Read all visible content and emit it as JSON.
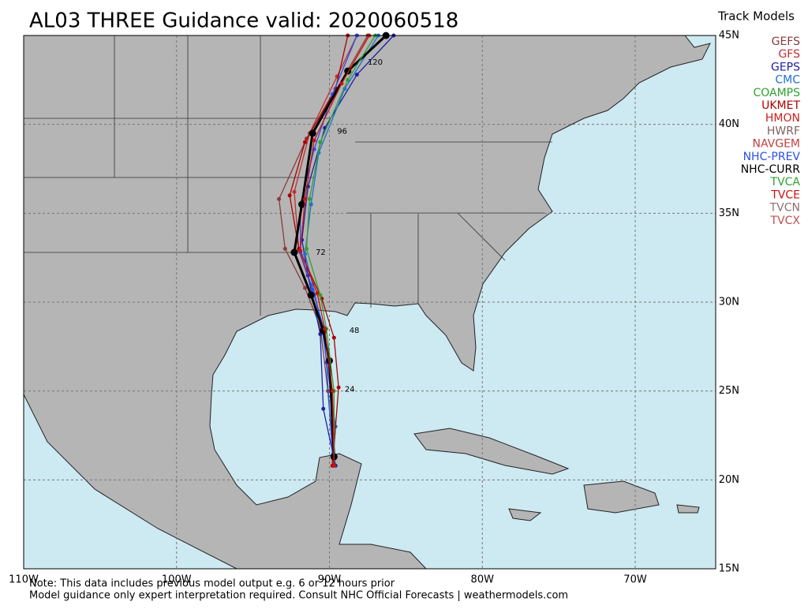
{
  "chart_data": {
    "type": "track-map",
    "title": "AL03 THREE Guidance valid: 2020060518",
    "legend_title": "Track Models",
    "lonticks": [
      {
        "value": -110,
        "label": "110W"
      },
      {
        "value": -100,
        "label": "100W"
      },
      {
        "value": -90,
        "label": "90W"
      },
      {
        "value": -80,
        "label": "80W"
      },
      {
        "value": -70,
        "label": "70W"
      }
    ],
    "latticks": [
      {
        "value": 45,
        "label": "45N"
      },
      {
        "value": 40,
        "label": "40N"
      },
      {
        "value": 35,
        "label": "35N"
      },
      {
        "value": 30,
        "label": "30N"
      },
      {
        "value": 25,
        "label": "25N"
      },
      {
        "value": 20,
        "label": "20N"
      },
      {
        "value": 15,
        "label": "15N"
      }
    ],
    "grid": true,
    "series": [
      {
        "name": "GEFS",
        "color": "#8b3a3a",
        "lon": [
          -89.7,
          -90.1,
          -90.6,
          -91.6,
          -92.9,
          -93.3,
          -91.5,
          -89.5,
          -87.5
        ],
        "lat": [
          20.8,
          25.0,
          28.6,
          30.8,
          33.0,
          35.8,
          39.2,
          42.0,
          45.0
        ]
      },
      {
        "name": "GFS",
        "color": "#c03030",
        "lon": [
          -89.8,
          -89.9,
          -90.3,
          -91.0,
          -92.0,
          -92.3,
          -91.3,
          -89.5,
          -88.2
        ],
        "lat": [
          20.8,
          25.0,
          28.3,
          30.4,
          32.9,
          36.2,
          39.5,
          42.7,
          45.0
        ]
      },
      {
        "name": "GEPS",
        "color": "#2020a0",
        "lon": [
          -89.6,
          -90.4,
          -90.6,
          -91.4,
          -91.8,
          -91.4,
          -90.3,
          -88.2,
          -85.8
        ],
        "lat": [
          20.8,
          24.0,
          28.2,
          31.5,
          33.5,
          36.5,
          39.8,
          42.8,
          45.0
        ]
      },
      {
        "name": "CMC",
        "color": "#2070d0",
        "lon": [
          -89.8,
          -89.6,
          -90.5,
          -91.1,
          -91.6,
          -91.2,
          -90.7,
          -89.0,
          -86.8
        ],
        "lat": [
          20.8,
          23.0,
          28.6,
          31.0,
          32.7,
          35.5,
          38.4,
          42.0,
          45.0
        ]
      },
      {
        "name": "UKMET",
        "color": "#aa0000",
        "lon": [
          -89.8,
          -89.4,
          -89.7,
          -90.5,
          -92.0,
          -92.6,
          -91.6,
          -89.6,
          -88.8
        ],
        "lat": [
          20.8,
          25.2,
          28.0,
          30.2,
          33.0,
          36.0,
          39.0,
          42.0,
          45.0
        ]
      },
      {
        "name": "NHC-PREV",
        "color": "#2a50e8",
        "lon": [
          -89.8,
          -90.2,
          -90.4,
          -91.1,
          -91.9,
          -91.9,
          -91.0,
          -89.8,
          -88.2
        ],
        "lat": [
          21.4,
          26.6,
          28.6,
          30.7,
          32.8,
          35.5,
          38.6,
          41.7,
          45.0
        ]
      },
      {
        "name": "NHC-CURR",
        "color": "#000000",
        "lon": [
          -89.7,
          -90.0,
          -90.4,
          -91.2,
          -92.3,
          -91.8,
          -91.1,
          -88.8,
          -86.3
        ],
        "lat": [
          21.3,
          26.7,
          28.4,
          30.4,
          32.8,
          35.5,
          39.5,
          43.0,
          45.0
        ]
      },
      {
        "name": "TVCA",
        "color": "#30a030",
        "lon": [
          -89.7,
          -89.7,
          -90.2,
          -90.6,
          -91.5,
          -91.3,
          -90.6,
          -88.8,
          -87.0
        ],
        "lat": [
          20.8,
          25.0,
          28.5,
          30.4,
          33.0,
          35.8,
          39.0,
          42.5,
          45.0
        ]
      },
      {
        "name": "TVCE",
        "color": "#cc1010",
        "lon": [
          -89.7,
          -89.8,
          -90.3,
          -90.8,
          -91.9,
          -91.6,
          -91.0,
          -89.2,
          -87.4
        ],
        "lat": [
          20.8,
          25.0,
          28.5,
          30.5,
          32.9,
          35.8,
          39.1,
          42.3,
          45.0
        ]
      }
    ],
    "legend_extra": [
      {
        "name": "COAMPS",
        "color": "#30a030"
      },
      {
        "name": "HMON",
        "color": "#cc2020"
      },
      {
        "name": "HWRF",
        "color": "#806060"
      },
      {
        "name": "NAVGEM",
        "color": "#c04040"
      },
      {
        "name": "TVCN",
        "color": "#907070"
      },
      {
        "name": "TVCX",
        "color": "#c05050"
      }
    ],
    "tau_labels": [
      {
        "text": "24",
        "lon": -89.0,
        "lat": 25.1
      },
      {
        "text": "48",
        "lon": -88.7,
        "lat": 28.4
      },
      {
        "text": "72",
        "lon": -90.9,
        "lat": 32.8
      },
      {
        "text": "96",
        "lon": -89.5,
        "lat": 39.6
      },
      {
        "text": "120",
        "lon": -87.5,
        "lat": 43.5
      }
    ],
    "notes": [
      "Note: This data includes previous model output e.g. 6 or 12 hours prior",
      "Model guidance only expert interpretation required. Consult NHC Official Forecasts | weathermodels.com"
    ]
  }
}
